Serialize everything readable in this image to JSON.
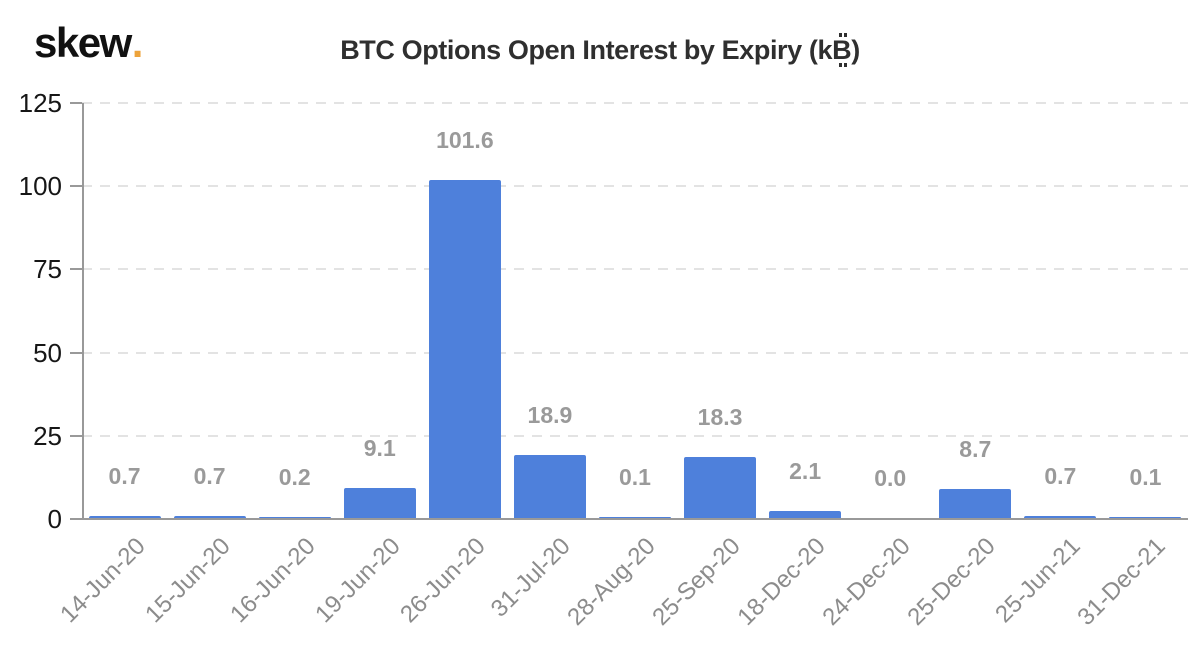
{
  "header": {
    "logo_text": "skew",
    "logo_dot": ".",
    "title": "BTC Options Open Interest by Expiry (k₿)",
    "title_prefix": "BTC Options Open Interest by Expiry (k",
    "title_symbol": "₿",
    "title_suffix": ")"
  },
  "colors": {
    "bar": "#4e80db",
    "logo_dot": "#eda33b",
    "title": "#2f2f2f",
    "value_label": "#9a9a9a",
    "y_tick_label": "#161616",
    "x_tick_label": "#8c8c8c",
    "axis": "#999999",
    "gridline": "#e3e3e3",
    "background": "#ffffff"
  },
  "chart_data": {
    "type": "bar",
    "title": "BTC Options Open Interest by Expiry (k₿)",
    "categories": [
      "14-Jun-20",
      "15-Jun-20",
      "16-Jun-20",
      "19-Jun-20",
      "26-Jun-20",
      "31-Jul-20",
      "28-Aug-20",
      "25-Sep-20",
      "18-Dec-20",
      "24-Dec-20",
      "25-Dec-20",
      "25-Jun-21",
      "31-Dec-21"
    ],
    "values": [
      0.7,
      0.7,
      0.2,
      9.1,
      101.6,
      18.9,
      0.1,
      18.3,
      2.1,
      0.0,
      8.7,
      0.7,
      0.1
    ],
    "value_labels": [
      "0.7",
      "0.7",
      "0.2",
      "9.1",
      "101.6",
      "18.9",
      "0.1",
      "18.3",
      "2.1",
      "0.0",
      "8.7",
      "0.7",
      "0.1"
    ],
    "xlabel": "",
    "ylabel": "",
    "ylim": [
      0,
      125
    ],
    "yticks": [
      0,
      25,
      50,
      75,
      100,
      125
    ],
    "ytick_labels": [
      "0",
      "25",
      "50",
      "75",
      "100",
      "125"
    ],
    "grid": "horizontal-dashed",
    "legend": "none",
    "bar_color": "#4e80db",
    "x_tick_rotation": -45
  }
}
